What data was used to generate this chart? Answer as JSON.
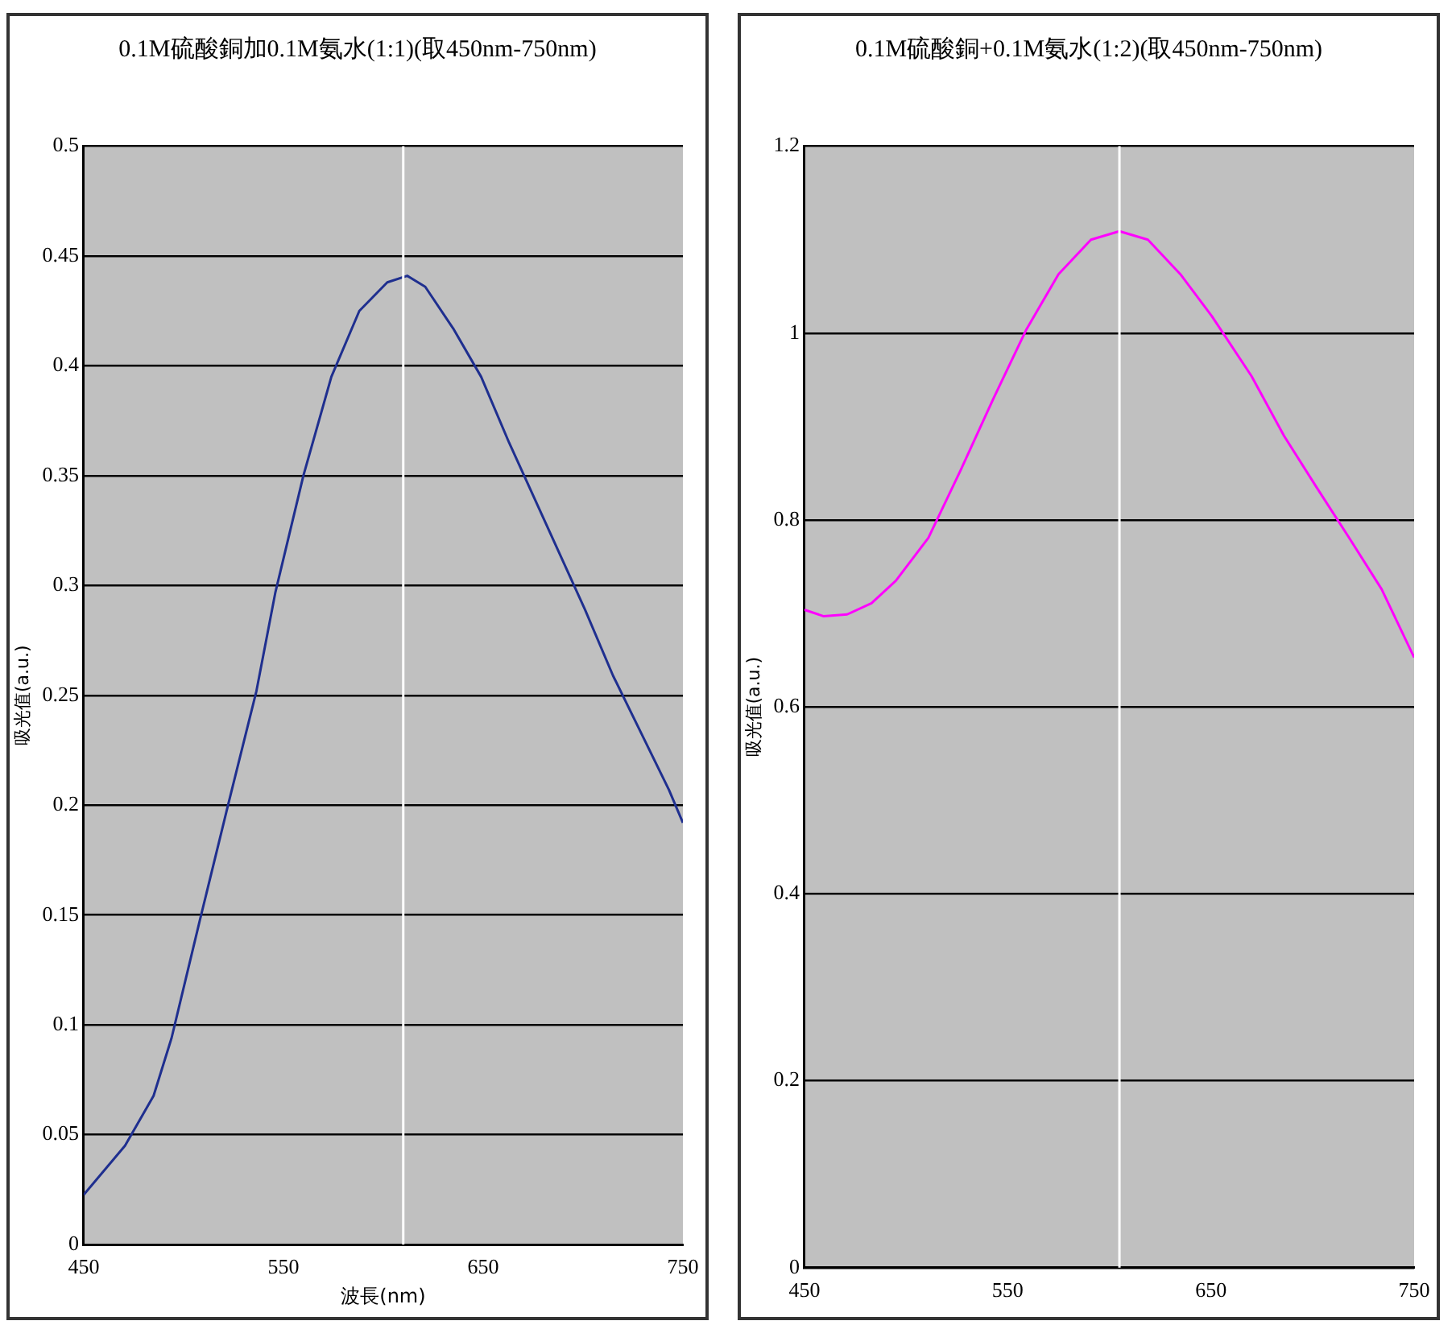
{
  "chart_data": [
    {
      "type": "line",
      "title": "0.1M硫酸銅加0.1M氨水(1:1)(取450nm-750nm)",
      "xlabel": "波長(nm)",
      "ylabel": "吸光值(a.u.)",
      "x": [
        450,
        470.7,
        485,
        494,
        508,
        522,
        536.5,
        546,
        560,
        574,
        588,
        602,
        612,
        621,
        635,
        649,
        663,
        682,
        701,
        715,
        729,
        743,
        750
      ],
      "series": [
        {
          "color": "#1f2f8f",
          "values": [
            0.0226,
            0.045,
            0.0677,
            0.094,
            0.147,
            0.199,
            0.252,
            0.297,
            0.35,
            0.395,
            0.425,
            0.438,
            0.441,
            0.436,
            0.417,
            0.395,
            0.365,
            0.327,
            0.289,
            0.259,
            0.233,
            0.207,
            0.192
          ]
        }
      ],
      "xlim": [
        450,
        750
      ],
      "xticks": [
        450,
        550,
        650,
        750
      ],
      "ylim": [
        0,
        0.5
      ],
      "yticks": [
        0,
        0.05,
        0.1,
        0.15,
        0.2,
        0.25,
        0.3,
        0.35,
        0.4,
        0.45,
        0.5
      ],
      "grid": "y",
      "legend": false,
      "marker": "none",
      "ref_lines": [
        {
          "axis": "x",
          "value": 610,
          "color": "#ffffff"
        }
      ]
    },
    {
      "type": "line",
      "title": "0.1M硫酸銅+0.1M氨水(1:2)(取450nm-750nm)",
      "ylabel": "吸光值(a.u.)",
      "x": [
        450,
        459.5,
        471,
        483,
        495,
        511,
        527,
        543,
        559,
        575,
        591,
        605,
        619,
        635,
        650.5,
        670,
        686,
        702,
        718,
        734,
        750
      ],
      "series": [
        {
          "color": "#ff00ff",
          "values": [
            0.704,
            0.697,
            0.699,
            0.711,
            0.735,
            0.781,
            0.854,
            0.93,
            1.003,
            1.063,
            1.1,
            1.109,
            1.1,
            1.063,
            1.018,
            0.954,
            0.89,
            0.835,
            0.781,
            0.726,
            0.653
          ]
        }
      ],
      "xlim": [
        450,
        750
      ],
      "xticks": [
        450,
        550,
        650,
        750
      ],
      "ylim": [
        0,
        1.2
      ],
      "yticks": [
        0,
        0.2,
        0.4,
        0.6,
        0.8,
        1,
        1.2
      ],
      "grid": "y",
      "legend": false,
      "marker": "none",
      "ref_lines": [
        {
          "axis": "x",
          "value": 605,
          "color": "#ffffff"
        }
      ]
    }
  ]
}
